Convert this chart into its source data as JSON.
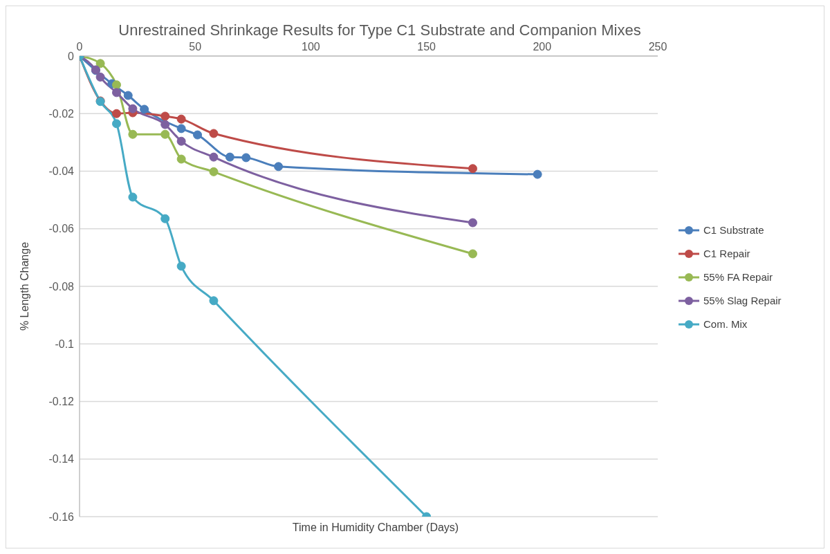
{
  "chart_data": {
    "type": "line",
    "title": "Unrestrained Shrinkage Results for Type C1 Substrate and Companion Mixes",
    "xlabel": "Time in Humidity Chamber (Days)",
    "ylabel": "% Length Change",
    "xlim": [
      0,
      250
    ],
    "xticks": [
      0,
      50,
      100,
      150,
      200,
      250
    ],
    "ylim": [
      -0.16,
      0
    ],
    "yticks": [
      0,
      -0.02,
      -0.04,
      -0.06,
      -0.08,
      -0.1,
      -0.12,
      -0.14,
      -0.16
    ],
    "grid": "y",
    "legend": "right",
    "marker": "circle",
    "line_style": "solid",
    "series": [
      {
        "name": "C1 Substrate",
        "color": "#4a7ebb",
        "x": [
          0,
          7,
          14,
          21,
          28,
          44,
          51,
          65,
          72,
          86,
          198
        ],
        "values": [
          0,
          -0.005,
          -0.0096,
          -0.0137,
          -0.0185,
          -0.0252,
          -0.0274,
          -0.0351,
          -0.0353,
          -0.0384,
          -0.0411
        ]
      },
      {
        "name": "C1 Repair",
        "color": "#be4b48",
        "x": [
          0,
          9,
          16,
          23,
          37,
          44,
          58,
          170
        ],
        "values": [
          0,
          -0.0156,
          -0.02,
          -0.0197,
          -0.0209,
          -0.0219,
          -0.0269,
          -0.0391
        ]
      },
      {
        "name": "55% FA Repair",
        "color": "#98b954",
        "x": [
          0,
          9,
          16,
          23,
          37,
          44,
          58,
          170
        ],
        "values": [
          0,
          -0.0026,
          -0.01,
          -0.0272,
          -0.0272,
          -0.0358,
          -0.0402,
          -0.0687
        ]
      },
      {
        "name": "55% Slag Repair",
        "color": "#7d60a0",
        "x": [
          0,
          7,
          9,
          16,
          23,
          37,
          44,
          58,
          170
        ],
        "values": [
          0,
          -0.0048,
          -0.0073,
          -0.0127,
          -0.0183,
          -0.0238,
          -0.0296,
          -0.0351,
          -0.0579
        ]
      },
      {
        "name": "Com. Mix",
        "color": "#46aac5",
        "x": [
          0,
          9,
          16,
          23,
          37,
          44,
          58,
          150
        ],
        "values": [
          0,
          -0.0158,
          -0.0235,
          -0.049,
          -0.0565,
          -0.073,
          -0.085,
          -0.16
        ]
      }
    ]
  }
}
